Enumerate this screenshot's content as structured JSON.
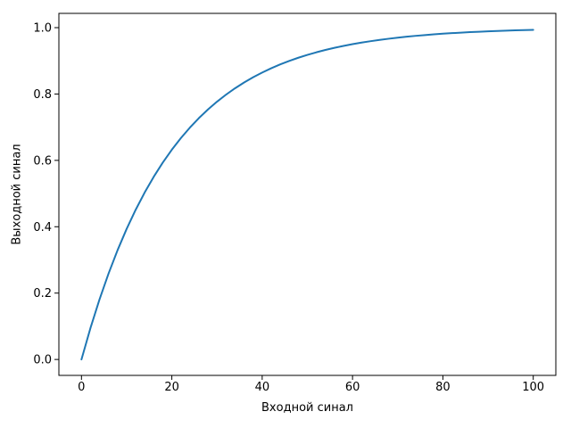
{
  "figure": {
    "background": "#ffffff",
    "frame_color": "#000000",
    "text_color": "#000000"
  },
  "chart_data": {
    "type": "line",
    "title": "",
    "xlabel": "Входной синал",
    "ylabel": "Выходной синал",
    "xlim": [
      -5,
      105
    ],
    "ylim": [
      -0.048,
      1.043
    ],
    "x_ticks": [
      0,
      20,
      40,
      60,
      80,
      100
    ],
    "x_tick_labels": [
      "0",
      "20",
      "40",
      "60",
      "80",
      "100"
    ],
    "y_ticks": [
      0.0,
      0.2,
      0.4,
      0.6,
      0.8,
      1.0
    ],
    "y_tick_labels": [
      "0.0",
      "0.2",
      "0.4",
      "0.6",
      "0.8",
      "1.0"
    ],
    "grid": false,
    "legend": false,
    "series": [
      {
        "name": "Выходной синал",
        "color": "#1f77b4",
        "line_width": 2,
        "x": [
          0,
          2,
          4,
          6,
          8,
          10,
          12,
          14,
          16,
          18,
          20,
          22,
          24,
          26,
          28,
          30,
          32,
          34,
          36,
          38,
          40,
          42,
          44,
          46,
          48,
          50,
          52,
          54,
          56,
          58,
          60,
          62,
          64,
          66,
          68,
          70,
          72,
          74,
          76,
          78,
          80,
          82,
          84,
          86,
          88,
          90,
          92,
          94,
          96,
          98,
          100
        ],
        "y": [
          0.0,
          0.0952,
          0.1813,
          0.2592,
          0.3297,
          0.3935,
          0.4512,
          0.5034,
          0.5507,
          0.5934,
          0.6321,
          0.6671,
          0.6988,
          0.7275,
          0.7534,
          0.7769,
          0.7981,
          0.8173,
          0.8347,
          0.8504,
          0.8647,
          0.8775,
          0.8892,
          0.8997,
          0.9093,
          0.9179,
          0.9257,
          0.9328,
          0.9392,
          0.945,
          0.9502,
          0.955,
          0.9592,
          0.9631,
          0.9666,
          0.9698,
          0.9727,
          0.9753,
          0.9776,
          0.9798,
          0.9817,
          0.9834,
          0.985,
          0.9864,
          0.9877,
          0.9889,
          0.9899,
          0.9909,
          0.9918,
          0.9926,
          0.9933
        ]
      }
    ]
  }
}
